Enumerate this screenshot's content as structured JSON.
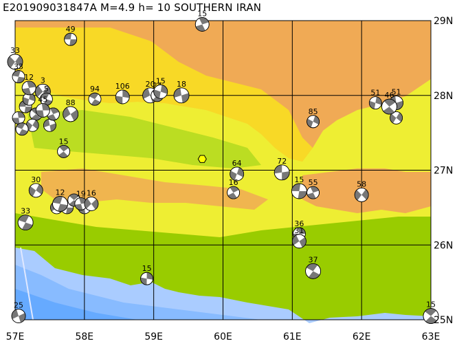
{
  "title": "E201909031847A  M=4.9  h= 10  SOUTHERN IRAN",
  "axes": {
    "x_labels": [
      "57E",
      "58E",
      "59E",
      "60E",
      "61E",
      "62E",
      "63E"
    ],
    "y_labels": [
      "29N",
      "28N",
      "27N",
      "26N",
      "25N"
    ]
  },
  "colors": {
    "sea_deep": "#66aaff",
    "sea_mid": "#88bbff",
    "sea_light": "#aaccff",
    "low_land": "#99cc00",
    "mid_low": "#bbdd22",
    "mid_land": "#eeee33",
    "yellow": "#ffff00",
    "high_land": "#f0aa55",
    "grid": "#000000"
  },
  "event_marker": {
    "symbol": "hexagon",
    "lon": 59.7,
    "lat": 27.15
  },
  "mechanisms": [
    {
      "label": "49",
      "lon": 57.8,
      "lat": 28.75
    },
    {
      "label": "15",
      "lon": 59.7,
      "lat": 28.95
    },
    {
      "label": "33",
      "lon": 57.0,
      "lat": 28.45
    },
    {
      "label": "33",
      "lon": 57.05,
      "lat": 28.25
    },
    {
      "label": "12",
      "lon": 57.2,
      "lat": 28.1
    },
    {
      "label": "3",
      "lon": 57.4,
      "lat": 28.05
    },
    {
      "label": "5",
      "lon": 57.45,
      "lat": 27.95
    },
    {
      "label": "45",
      "lon": 57.4,
      "lat": 27.8
    },
    {
      "label": "88",
      "lon": 57.8,
      "lat": 27.75
    },
    {
      "label": "94",
      "lon": 58.15,
      "lat": 27.95
    },
    {
      "label": "106",
      "lon": 58.55,
      "lat": 27.98
    },
    {
      "label": "20",
      "lon": 58.95,
      "lat": 28.0
    },
    {
      "label": "24",
      "lon": 59.05,
      "lat": 28.0
    },
    {
      "label": "15",
      "lon": 59.1,
      "lat": 28.05
    },
    {
      "label": "18",
      "lon": 59.4,
      "lat": 28.0
    },
    {
      "label": "15",
      "lon": 57.7,
      "lat": 27.25
    },
    {
      "label": "64",
      "lon": 60.2,
      "lat": 26.95
    },
    {
      "label": "72",
      "lon": 60.85,
      "lat": 26.97
    },
    {
      "label": "16",
      "lon": 60.15,
      "lat": 26.7
    },
    {
      "label": "30",
      "lon": 57.3,
      "lat": 26.73
    },
    {
      "label": "15",
      "lon": 61.1,
      "lat": 26.72
    },
    {
      "label": "55",
      "lon": 61.3,
      "lat": 26.7
    },
    {
      "label": "58",
      "lon": 62.0,
      "lat": 26.67
    },
    {
      "label": "12",
      "lon": 57.65,
      "lat": 26.55
    },
    {
      "label": "19",
      "lon": 57.95,
      "lat": 26.55
    },
    {
      "label": "16",
      "lon": 58.1,
      "lat": 26.55
    },
    {
      "label": "33",
      "lon": 57.15,
      "lat": 26.3
    },
    {
      "label": "36",
      "lon": 61.1,
      "lat": 26.15
    },
    {
      "label": "31",
      "lon": 61.1,
      "lat": 26.05
    },
    {
      "label": "37",
      "lon": 61.3,
      "lat": 25.65
    },
    {
      "label": "15",
      "lon": 58.9,
      "lat": 25.55
    },
    {
      "label": "25",
      "lon": 57.05,
      "lat": 25.05
    },
    {
      "label": "15",
      "lon": 63.0,
      "lat": 25.05
    },
    {
      "label": "51",
      "lon": 62.2,
      "lat": 27.9
    },
    {
      "label": "51",
      "lon": 62.5,
      "lat": 27.9
    },
    {
      "label": "46",
      "lon": 62.4,
      "lat": 27.85
    },
    {
      "label": "85",
      "lon": 61.3,
      "lat": 27.65
    }
  ],
  "cluster_extra": [
    {
      "lon": 57.15,
      "lat": 27.85
    },
    {
      "lon": 57.3,
      "lat": 27.75
    },
    {
      "lon": 57.05,
      "lat": 27.7
    },
    {
      "lon": 57.25,
      "lat": 27.6
    },
    {
      "lon": 57.5,
      "lat": 27.6
    },
    {
      "lon": 57.1,
      "lat": 27.55
    },
    {
      "lon": 57.55,
      "lat": 27.75
    },
    {
      "lon": 57.2,
      "lat": 27.95
    },
    {
      "lon": 57.6,
      "lat": 26.5
    },
    {
      "lon": 57.75,
      "lat": 26.5
    },
    {
      "lon": 57.85,
      "lat": 26.6
    },
    {
      "lon": 58.0,
      "lat": 26.5
    },
    {
      "lon": 62.5,
      "lat": 27.7
    }
  ]
}
